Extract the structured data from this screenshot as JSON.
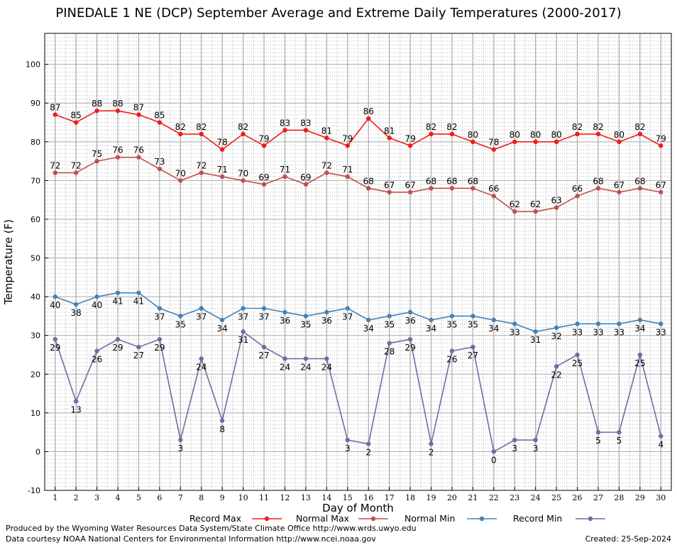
{
  "chart_data": {
    "type": "line",
    "title": "PINEDALE 1 NE (DCP) September Average and Extreme Daily Temperatures (2000-2017)",
    "xlabel": "Day of Month",
    "ylabel": "Temperature (F)",
    "ylim": [
      -10,
      108
    ],
    "xlim": [
      0.5,
      30.5
    ],
    "yticks": [
      -10,
      0,
      10,
      20,
      30,
      40,
      50,
      60,
      70,
      80,
      90,
      100
    ],
    "x": [
      1,
      2,
      3,
      4,
      5,
      6,
      7,
      8,
      9,
      10,
      11,
      12,
      13,
      14,
      15,
      16,
      17,
      18,
      19,
      20,
      21,
      22,
      23,
      24,
      25,
      26,
      27,
      28,
      29,
      30
    ],
    "grid": true,
    "legend_position": "bottom",
    "series": [
      {
        "name": "Record Max",
        "color": "#ee1c1c",
        "label_position": "above",
        "values": [
          87,
          85,
          88,
          88,
          87,
          85,
          82,
          82,
          78,
          82,
          79,
          83,
          83,
          81,
          79,
          86,
          81,
          79,
          82,
          82,
          80,
          78,
          80,
          80,
          80,
          82,
          82,
          80,
          82,
          79
        ]
      },
      {
        "name": "Normal Max",
        "color": "#c0504d",
        "label_position": "above",
        "values": [
          72,
          72,
          75,
          76,
          76,
          73,
          70,
          72,
          71,
          70,
          69,
          71,
          69,
          72,
          71,
          68,
          67,
          67,
          68,
          68,
          68,
          66,
          62,
          62,
          63,
          66,
          68,
          67,
          68,
          67
        ]
      },
      {
        "name": "Normal Min",
        "color": "#4682b4",
        "label_position": "below",
        "values": [
          40,
          38,
          40,
          41,
          41,
          37,
          35,
          37,
          34,
          37,
          37,
          36,
          35,
          36,
          37,
          34,
          35,
          36,
          34,
          35,
          35,
          34,
          33,
          31,
          32,
          33,
          33,
          33,
          34,
          33
        ]
      },
      {
        "name": "Record Min",
        "color": "#8064a2",
        "label_position": "below",
        "values": [
          29,
          13,
          26,
          29,
          27,
          29,
          3,
          24,
          8,
          31,
          27,
          24,
          24,
          24,
          3,
          2,
          28,
          29,
          2,
          26,
          27,
          0,
          3,
          3,
          22,
          25,
          5,
          5,
          25,
          4
        ]
      }
    ]
  },
  "footer": {
    "line1": "Produced by the Wyoming Water Resources Data System/State Climate Office http://www.wrds.uwyo.edu",
    "line2": "Data courtesy NOAA National Centers for Environmental Information http://www.ncei.noaa.gov",
    "created": "Created:  25-Sep-2024"
  }
}
